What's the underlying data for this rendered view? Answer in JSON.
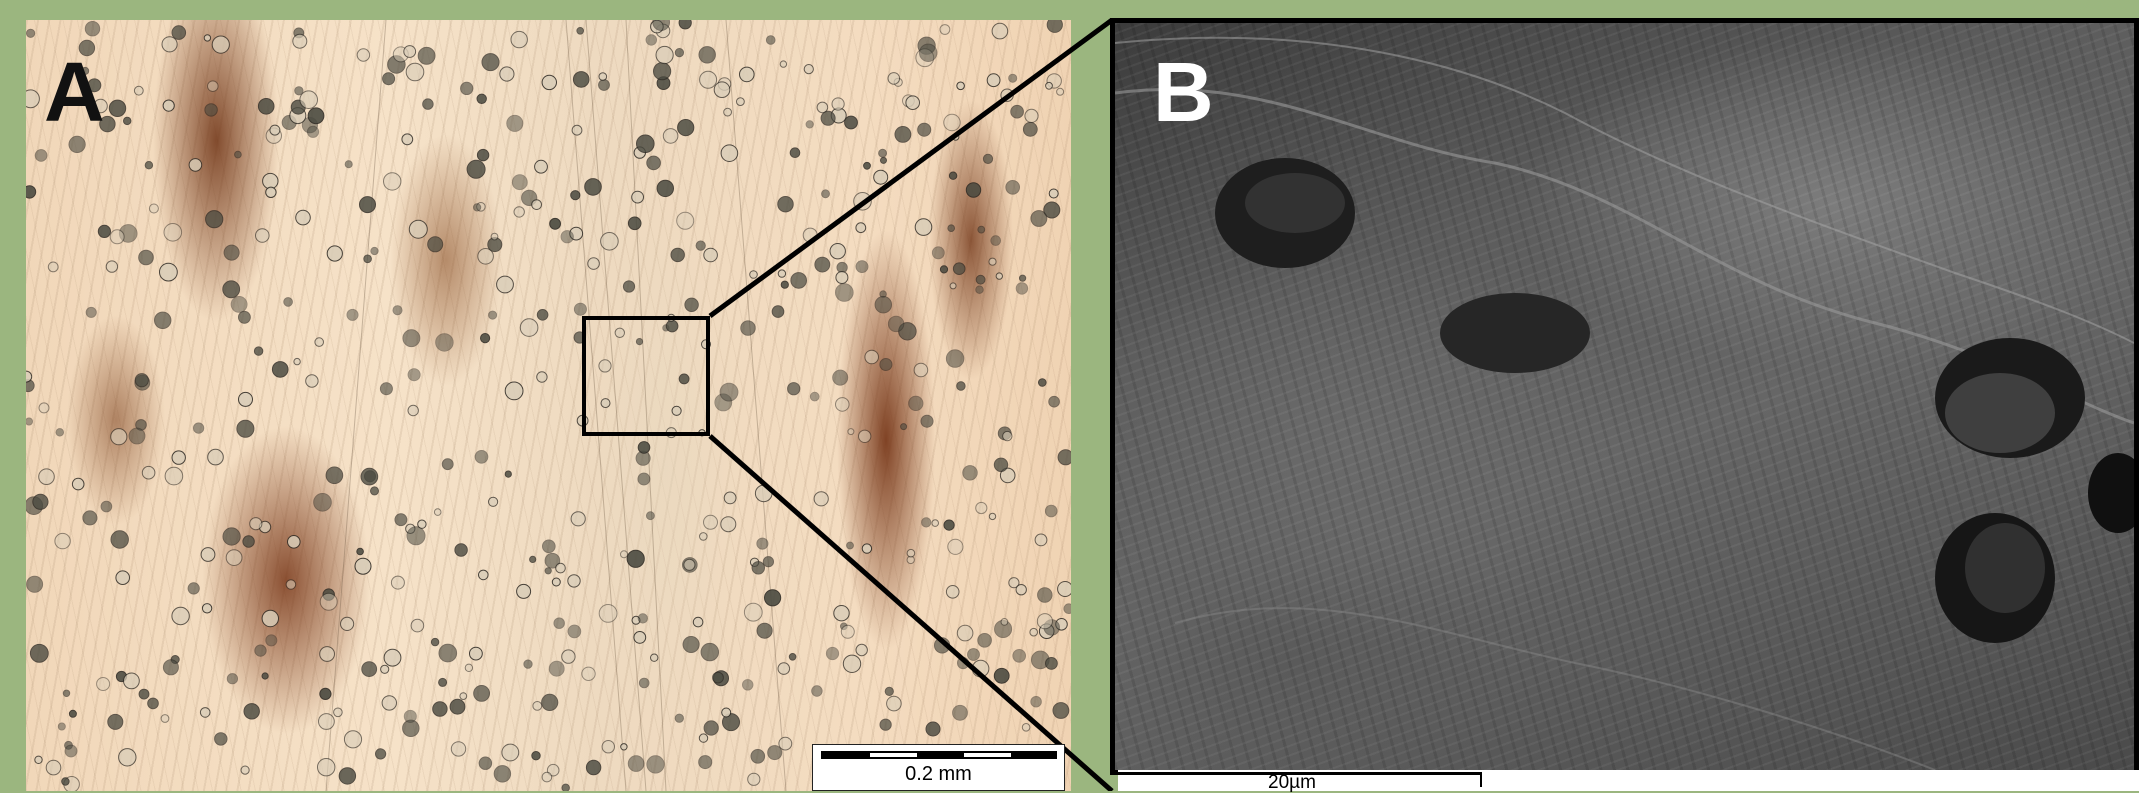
{
  "figure": {
    "panel_a": {
      "label": "A",
      "scale_bar": "0.2 mm"
    },
    "panel_b": {
      "label": "B",
      "scale_bar": "20µm"
    }
  },
  "colors": {
    "background": "#9bb67f",
    "micrograph_base": "#f4dcc0",
    "stain": "#7a3a18",
    "sem_gray": "#5c5c5c"
  }
}
